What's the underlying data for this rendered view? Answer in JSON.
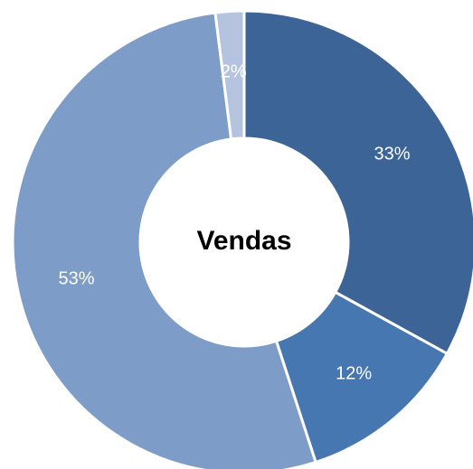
{
  "chart_data": {
    "type": "donut",
    "title": "Vendas",
    "values": [
      33,
      12,
      53,
      2
    ],
    "value_labels": [
      "33%",
      "12%",
      "53%",
      "2%"
    ],
    "colors": [
      "#3d6496",
      "#4677b0",
      "#7e9cc8",
      "#b4c4df"
    ]
  }
}
